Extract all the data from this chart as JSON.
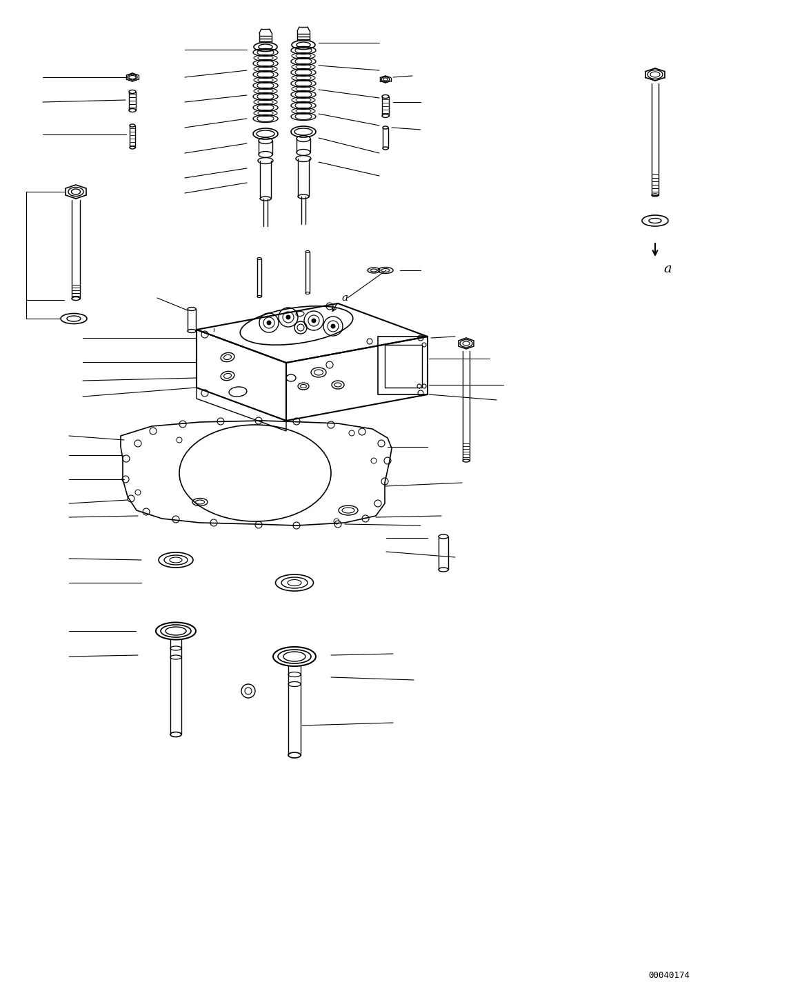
{
  "bg_color": "#ffffff",
  "lc": "#000000",
  "fig_width": 11.63,
  "fig_height": 14.37,
  "dpi": 100,
  "ref_code": "00040174",
  "label_a": "a"
}
